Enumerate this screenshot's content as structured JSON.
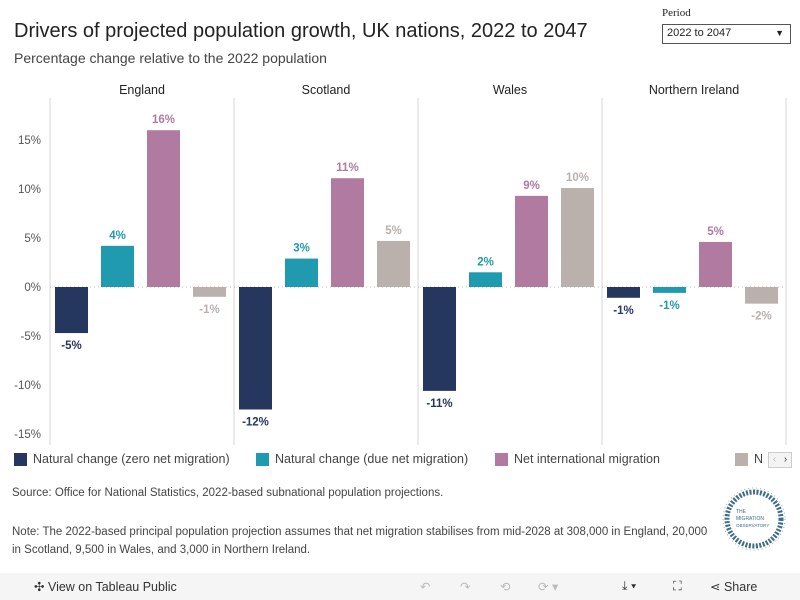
{
  "header": {
    "title": "Drivers of projected population growth, UK nations, 2022 to 2047",
    "subtitle": "Percentage change relative to the 2022 population"
  },
  "filter": {
    "label": "Period",
    "value": "2022 to 2047"
  },
  "chart_data": {
    "type": "bar",
    "title": "Drivers of projected population growth, UK nations, 2022 to 2047",
    "subtitle": "Percentage change relative to the 2022 population",
    "panels": [
      "England",
      "Scotland",
      "Wales",
      "Northern Ireland"
    ],
    "series": [
      {
        "name": "Natural change (zero net migration)",
        "color": "#25365f",
        "values": [
          -4.7,
          -12.5,
          -10.6,
          -1.1
        ],
        "labels": [
          "-5%",
          "-12%",
          "-11%",
          "-1%"
        ]
      },
      {
        "name": "Natural change (due net migration)",
        "color": "#1f9aae",
        "values": [
          4.2,
          2.9,
          1.5,
          -0.6
        ],
        "labels": [
          "4%",
          "3%",
          "2%",
          "-1%"
        ]
      },
      {
        "name": "Net international migration",
        "color": "#b07aa1",
        "values": [
          16.0,
          11.1,
          9.3,
          4.6
        ],
        "labels": [
          "16%",
          "11%",
          "9%",
          "5%"
        ]
      },
      {
        "name": "N",
        "color": "#bab0ac",
        "values": [
          -1.0,
          4.7,
          10.1,
          -1.7
        ],
        "labels": [
          "-1%",
          "5%",
          "10%",
          "-2%"
        ]
      }
    ],
    "yticks": [
      "15%",
      "10%",
      "5%",
      "0%",
      "-5%",
      "-10%",
      "-15%"
    ],
    "ylim": [
      -15.5,
      18.5
    ],
    "legend": "bottom"
  },
  "footer": {
    "source": "Source: Office for National Statistics, 2022-based subnational population projections.",
    "note": "Note: The 2022-based principal population projection assumes that net migration stabilises from mid-2028 at 308,000 in England, 20,000 in Scotland, 9,500 in Wales, and 3,000 in Northern Ireland.",
    "logo_text": "THE MIGRATION OBSERVATORY"
  },
  "toolbar": {
    "view": "View on Tableau Public",
    "share": "Share"
  }
}
